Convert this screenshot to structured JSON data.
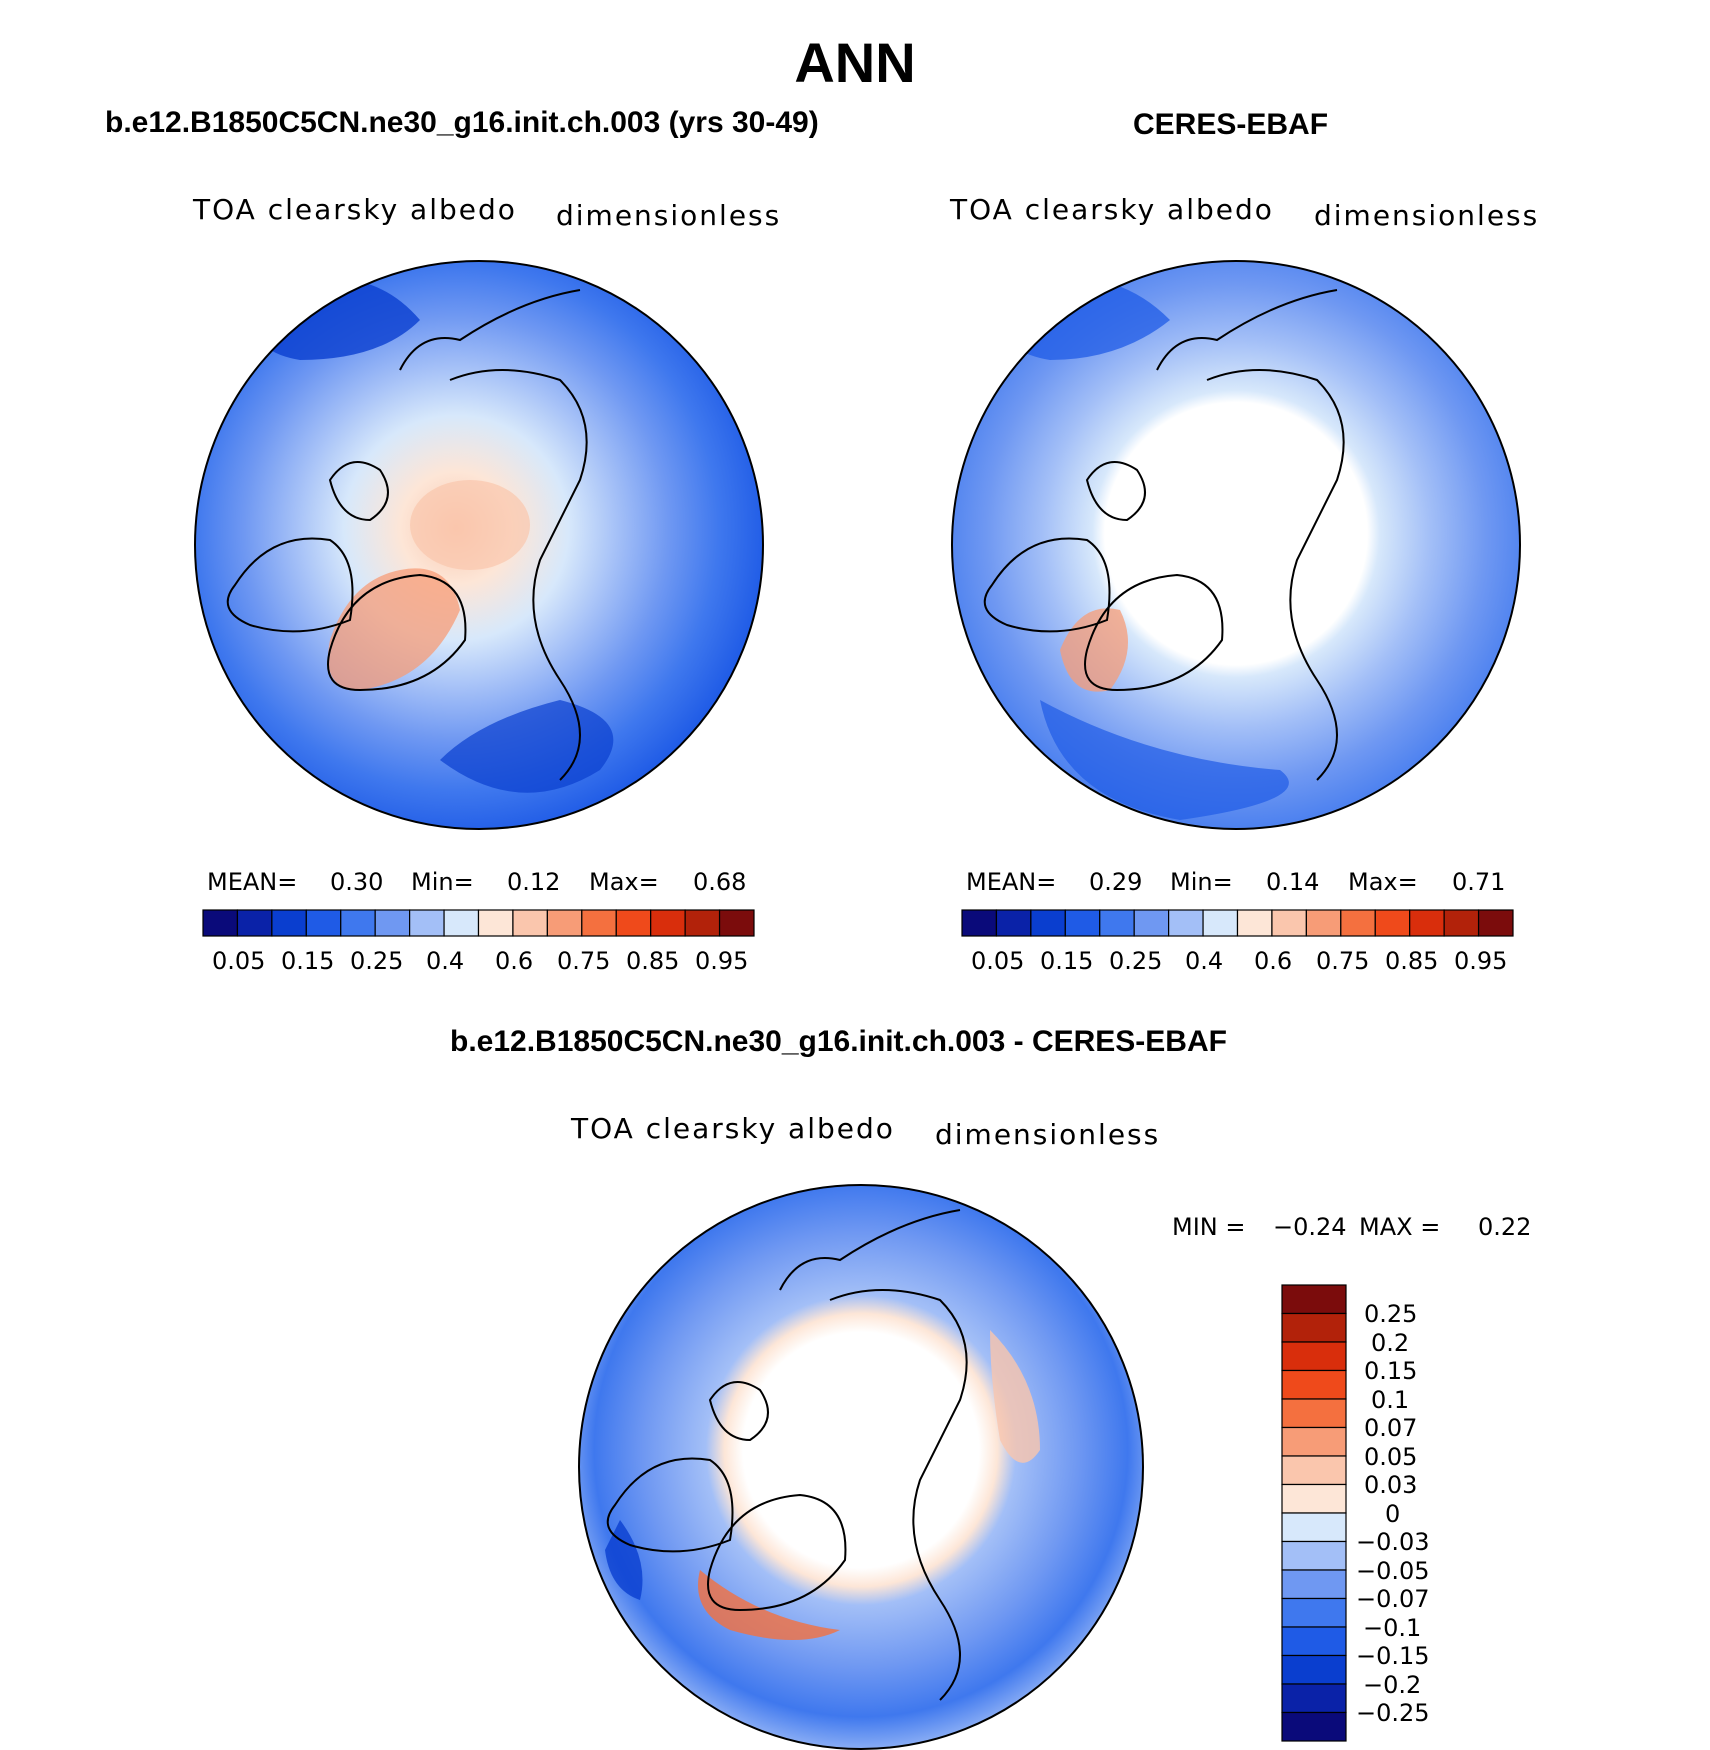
{
  "figure": {
    "title": "ANN"
  },
  "variable": {
    "name": "TOA clearsky albedo",
    "units": "dimensionless"
  },
  "panels": [
    {
      "title": "b.e12.B1850C5CN.ne30_g16.init.ch.003 (yrs 30-49)",
      "stats": {
        "mean_label": "MEAN=",
        "mean": "0.30",
        "min_label": "Min=",
        "min": "0.12",
        "max_label": "Max=",
        "max": "0.68"
      }
    },
    {
      "title": "CERES-EBAF",
      "stats": {
        "mean_label": "MEAN=",
        "mean": "0.29",
        "min_label": "Min=",
        "min": "0.14",
        "max_label": "Max=",
        "max": "0.71"
      }
    },
    {
      "title": "b.e12.B1850C5CN.ne30_g16.init.ch.003 - CERES-EBAF",
      "stats": {
        "min_label": "MIN =",
        "min": "−0.24",
        "max_label": "MAX =",
        "max": "0.22"
      }
    }
  ],
  "colorbar_abs": {
    "colors": [
      "#0a0a7a",
      "#0a22a8",
      "#0a3ecf",
      "#1f5be6",
      "#3f78ee",
      "#6f98f2",
      "#a3bff7",
      "#d7e8fb",
      "#fde6d7",
      "#fac6ad",
      "#f79c77",
      "#f4703f",
      "#ef4a1b",
      "#d92e0c",
      "#b2220a",
      "#7b0c0c"
    ],
    "labels": [
      "0.05",
      "0.15",
      "0.25",
      "0.4",
      "0.6",
      "0.75",
      "0.85",
      "0.95"
    ]
  },
  "colorbar_diff": {
    "colors_top_to_bottom": [
      "#7b0c0c",
      "#b2220a",
      "#d92e0c",
      "#ef4a1b",
      "#f4703f",
      "#f79c77",
      "#fac6ad",
      "#fde6d7",
      "#d7e8fb",
      "#a3bff7",
      "#6f98f2",
      "#3f78ee",
      "#1f5be6",
      "#0a3ecf",
      "#0a22a8",
      "#0a0a7a"
    ],
    "labels": [
      "0.25",
      "0.2",
      "0.15",
      "0.1",
      "0.07",
      "0.05",
      "0.03",
      "0",
      "−0.03",
      "−0.05",
      "−0.07",
      "−0.1",
      "−0.15",
      "−0.2",
      "−0.25"
    ]
  }
}
